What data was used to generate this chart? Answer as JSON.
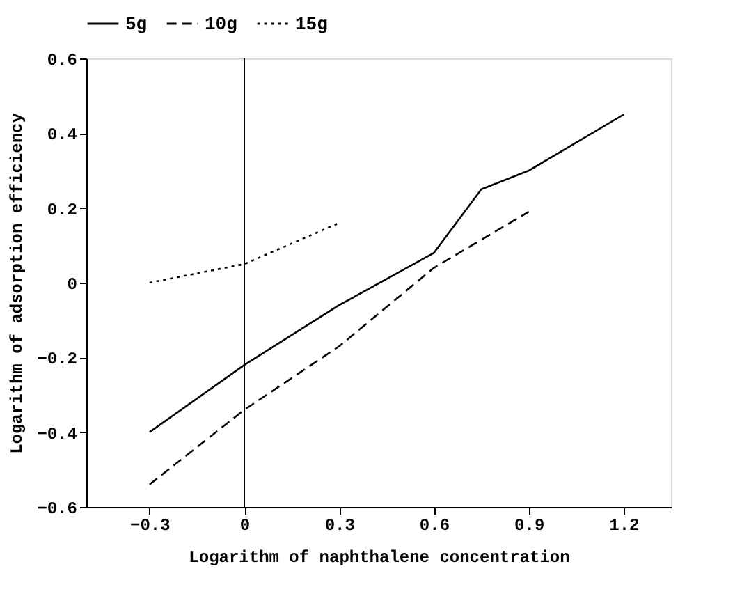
{
  "chart_data": {
    "type": "line",
    "xlabel": "Logarithm of naphthalene concentration",
    "ylabel": "Logarithm of adsorption efficiency",
    "series": [
      {
        "name": "5g",
        "color": "#000000",
        "line_style": "solid",
        "x": [
          -0.3,
          0,
          0.3,
          0.6,
          0.75,
          0.9,
          1.2
        ],
        "values": [
          -0.4,
          -0.22,
          -0.06,
          0.08,
          0.25,
          0.3,
          0.45
        ]
      },
      {
        "name": "10g",
        "color": "#000000",
        "line_style": "dashed",
        "x": [
          -0.3,
          0,
          0.3,
          0.6,
          0.9
        ],
        "values": [
          -0.54,
          -0.34,
          -0.17,
          0.04,
          0.19
        ]
      },
      {
        "name": "15g",
        "color": "#000000",
        "line_style": "dotted",
        "x": [
          -0.3,
          0,
          0.3
        ],
        "values": [
          0,
          0.05,
          0.16
        ]
      }
    ],
    "xlim": [
      -0.5,
      1.35
    ],
    "xticks": [
      -0.3,
      0,
      0.3,
      0.6,
      0.9,
      1.2
    ],
    "ylim": [
      -0.6,
      0.6
    ],
    "yticks": [
      -0.6,
      -0.4,
      -0.2,
      0,
      0.2,
      0.4,
      0.6
    ],
    "ref_lines": [
      {
        "axis": "x",
        "value": 0,
        "color": "#000000"
      }
    ],
    "grid": false,
    "legend": "top",
    "marker": "none"
  }
}
